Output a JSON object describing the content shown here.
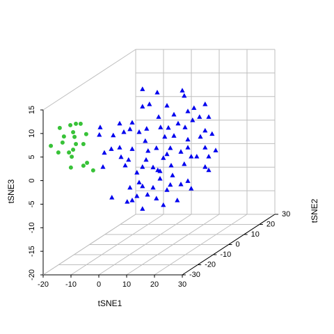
{
  "chart_data": {
    "type": "scatter3d",
    "xlabel": "tSNE1",
    "ylabel": "tSNE2",
    "zlabel": "tSNE3",
    "xlim": [
      -20,
      30
    ],
    "ylim": [
      -30,
      30
    ],
    "zlim": [
      -20,
      15
    ],
    "xticks": [
      -20,
      -10,
      0,
      10,
      20,
      30
    ],
    "yticks": [
      -30,
      -20,
      -10,
      0,
      10,
      20,
      30
    ],
    "zticks": [
      -20,
      -15,
      -10,
      -5,
      0,
      5,
      10,
      15
    ],
    "grid": true,
    "series": [
      {
        "color": "#38c238",
        "marker": "circle",
        "x": [
          -16.8,
          -13.0,
          -11.0,
          -9.3,
          -7.3,
          -12.0,
          -15.3,
          -11.5,
          -20.0,
          -15.8,
          -12.0,
          -13.5,
          -17.3,
          -12.5,
          -7.0,
          -8.3,
          -12.8,
          -4.8,
          -11.0,
          -8.3
        ],
        "y": [
          -25,
          -25,
          -25,
          -25,
          -25,
          -25,
          -25,
          -25,
          -25,
          -25,
          -25,
          -25,
          -25,
          -25,
          -25,
          -25,
          -25,
          -25,
          -25,
          -25
        ],
        "z": [
          10.1,
          10.7,
          11.0,
          11.0,
          8.8,
          9.2,
          8.3,
          8.2,
          6.3,
          7.0,
          5.5,
          4.9,
          4.9,
          4.0,
          2.7,
          2.1,
          1.7,
          1.1,
          6.7,
          6.7
        ]
      },
      {
        "color": "#0000ee",
        "marker": "triangle",
        "x": [
          -3.7,
          1.6,
          10.6,
          11.3,
          -1.2,
          -3.7,
          5.1,
          14.8,
          18.8,
          12.6,
          7.6,
          2.1,
          -7.4,
          -11.9,
          -18.9,
          -8.2,
          -2.2,
          2.8,
          5.6,
          9.1,
          14.3,
          16.8,
          11.6,
          20.1,
          18.8,
          21.3,
          -10.4,
          -4.9,
          -2.7,
          4.3,
          7.6,
          12.6,
          17.1,
          1.3,
          6.3,
          12.6,
          10.1,
          18.8,
          -14.9,
          -11.9,
          -7.4,
          -1.7,
          5.1,
          13.8,
          -2.4,
          3.8,
          -8.7,
          -9.9,
          -3.7,
          0.1,
          2.6,
          6.6,
          18.8,
          11.3,
          -5.7,
          1.8,
          -17.9,
          -11.4,
          -17.4,
          -4.9,
          2.6,
          6.3,
          10.1,
          12.6,
          13.8,
          -1.9,
          5.1,
          -5.7,
          1.3,
          3.8,
          -7.4,
          -9.2,
          -14.7,
          -3.7,
          8.8,
          -19.2,
          -14.2,
          20.1,
          20.1,
          15.8,
          22.6,
          0.1,
          7.1,
          -3.7,
          -8.2
        ],
        "y": [
          5,
          5,
          5,
          5,
          5,
          5,
          5,
          5,
          5,
          5,
          5,
          5,
          5,
          5,
          5,
          5,
          5,
          5,
          5,
          5,
          5,
          5,
          5,
          5,
          5,
          5,
          5,
          5,
          5,
          5,
          5,
          5,
          5,
          5,
          5,
          5,
          5,
          5,
          5,
          5,
          5,
          5,
          5,
          5,
          5,
          5,
          5,
          5,
          5,
          5,
          5,
          5,
          5,
          5,
          5,
          5,
          5,
          5,
          5,
          5,
          5,
          5,
          5,
          5,
          5,
          5,
          5,
          5,
          5,
          5,
          5,
          5,
          5,
          5,
          5,
          5,
          5,
          5,
          5,
          5,
          5,
          5,
          5,
          5,
          5
        ],
        "z": [
          11.9,
          11.2,
          11.6,
          10.5,
          8.7,
          8.2,
          8.4,
          7.9,
          8.7,
          7.2,
          6.5,
          6.0,
          4.8,
          4.6,
          3.8,
          3.4,
          3.5,
          3.8,
          3.7,
          4.6,
          5.3,
          6.0,
          3.8,
          6.0,
          3.1,
          2.4,
          2.8,
          2.8,
          0.9,
          1.8,
          2.0,
          1.2,
          1.8,
          -0.6,
          -0.6,
          -0.5,
          -1.4,
          -0.5,
          -0.8,
          -0.5,
          -0.8,
          -1.2,
          -1.9,
          -2.4,
          -3.1,
          -2.7,
          -3.1,
          -4.3,
          -4.6,
          -4.7,
          -5.5,
          -4.3,
          -4.6,
          -4.0,
          -5.8,
          -5.3,
          -4.6,
          -2.5,
          -1.6,
          -7.9,
          -7.1,
          -8.4,
          -8.3,
          -7.6,
          -9.2,
          -10.5,
          -9.5,
          -10.8,
          -11.3,
          -12.7,
          -11.7,
          -12.0,
          -11.1,
          -13.5,
          -11.7,
          2.2,
          2.1,
          -2.4,
          -5.3,
          -2.4,
          -1.1,
          -9.0,
          -6.4,
          -8.7,
          -9.0
        ]
      }
    ]
  }
}
